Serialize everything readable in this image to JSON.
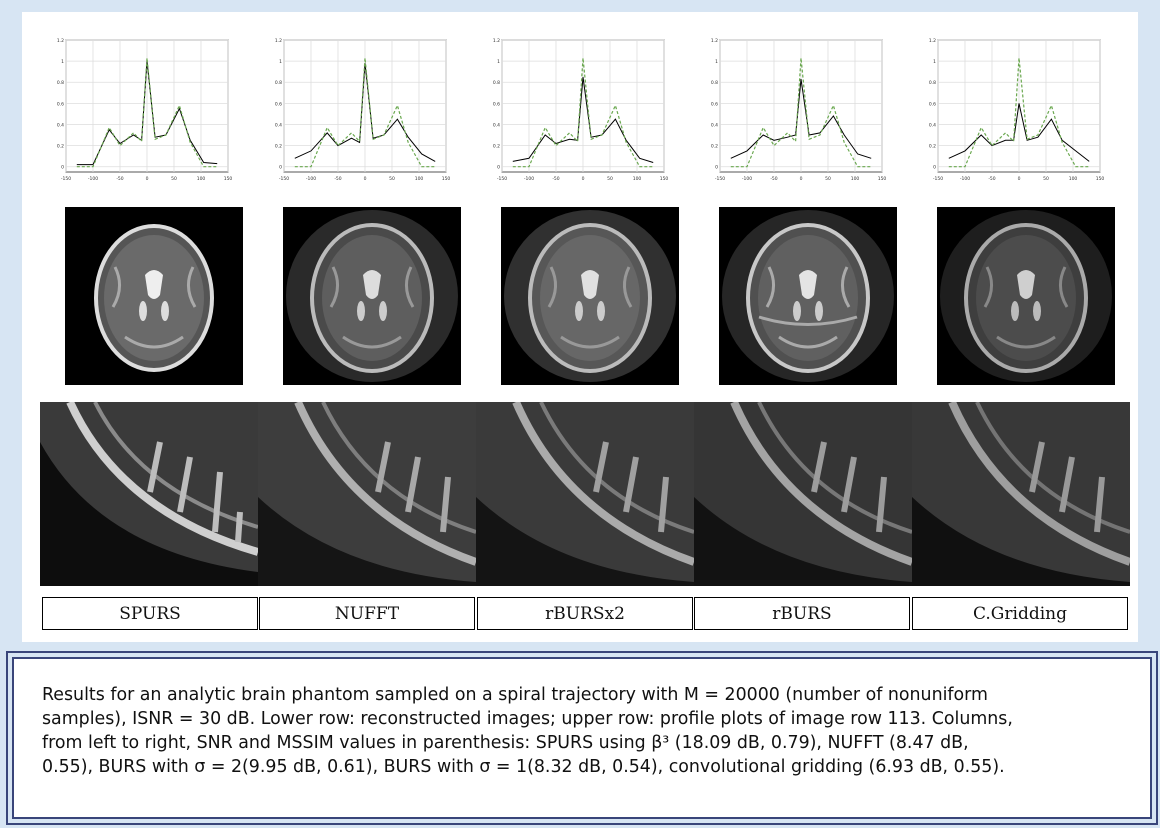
{
  "methods": [
    "SPURS",
    "NUFFT",
    "rBURSx2",
    "rBURS",
    "C.Gridding"
  ],
  "caption": {
    "line1": "Results for an analytic brain phantom sampled on a spiral trajectory with M = 20000 (number of nonuniform",
    "line2": "samples), ISNR = 30 dB. Lower row: reconstructed images; upper row: profile plots of image row 113. Columns,",
    "line3": "from left to right, SNR and MSSIM values in parenthesis: SPURS using β³ (18.09 dB, 0.79), NUFFT (8.47 dB,",
    "line4": "0.55), BURS with σ = 2(9.95 dB, 0.61), BURS with σ = 1(8.32 dB, 0.54), convolutional gridding (6.93 dB, 0.55)."
  },
  "chart_data": [
    {
      "type": "line",
      "series": [
        {
          "values": [
            0.02,
            0.02,
            0.35,
            0.22,
            0.3,
            0.25,
            1.0,
            0.28,
            0.3,
            0.55,
            0.25,
            0.04,
            0.03
          ]
        },
        {
          "values": [
            0.0,
            0.0,
            0.37,
            0.2,
            0.32,
            0.24,
            1.03,
            0.26,
            0.3,
            0.58,
            0.23,
            0.0,
            0.0
          ]
        }
      ],
      "x": [
        -130,
        -100,
        -70,
        -50,
        -25,
        -10,
        0,
        15,
        35,
        60,
        80,
        105,
        130
      ],
      "xlim": [
        -150,
        150
      ],
      "ylim": [
        -0.05,
        1.2
      ],
      "yticks": [
        0,
        0.2,
        0.4,
        0.6,
        0.8,
        1,
        1.2
      ],
      "xticks": [
        -150,
        -100,
        -50,
        0,
        50,
        100,
        150
      ],
      "grid": true
    },
    {
      "type": "line",
      "series": [
        {
          "values": [
            0.08,
            0.15,
            0.32,
            0.2,
            0.27,
            0.23,
            0.98,
            0.27,
            0.3,
            0.45,
            0.28,
            0.12,
            0.05
          ]
        },
        {
          "values": [
            0.0,
            0.0,
            0.37,
            0.2,
            0.32,
            0.24,
            1.03,
            0.26,
            0.3,
            0.58,
            0.23,
            0.0,
            0.0
          ]
        }
      ],
      "x": [
        -130,
        -100,
        -70,
        -50,
        -25,
        -10,
        0,
        15,
        35,
        60,
        80,
        105,
        130
      ],
      "xlim": [
        -150,
        150
      ],
      "ylim": [
        -0.05,
        1.2
      ],
      "yticks": [
        0,
        0.2,
        0.4,
        0.6,
        0.8,
        1,
        1.2
      ],
      "xticks": [
        -150,
        -100,
        -50,
        0,
        50,
        100,
        150
      ],
      "grid": true
    },
    {
      "type": "line",
      "series": [
        {
          "values": [
            0.05,
            0.08,
            0.3,
            0.22,
            0.26,
            0.25,
            0.85,
            0.28,
            0.3,
            0.45,
            0.25,
            0.08,
            0.04
          ]
        },
        {
          "values": [
            0.0,
            0.0,
            0.37,
            0.2,
            0.32,
            0.24,
            1.03,
            0.26,
            0.3,
            0.58,
            0.23,
            0.0,
            0.0
          ]
        }
      ],
      "x": [
        -130,
        -100,
        -70,
        -50,
        -25,
        -10,
        0,
        15,
        35,
        60,
        80,
        105,
        130
      ],
      "xlim": [
        -150,
        150
      ],
      "ylim": [
        -0.05,
        1.2
      ],
      "yticks": [
        0,
        0.2,
        0.4,
        0.6,
        0.8,
        1,
        1.2
      ],
      "xticks": [
        -150,
        -100,
        -50,
        0,
        50,
        100,
        150
      ],
      "grid": true
    },
    {
      "type": "line",
      "series": [
        {
          "values": [
            0.08,
            0.15,
            0.3,
            0.25,
            0.28,
            0.3,
            0.83,
            0.3,
            0.32,
            0.48,
            0.3,
            0.12,
            0.08
          ]
        },
        {
          "values": [
            0.0,
            0.0,
            0.37,
            0.2,
            0.32,
            0.24,
            1.03,
            0.26,
            0.3,
            0.58,
            0.23,
            0.0,
            0.0
          ]
        }
      ],
      "x": [
        -130,
        -100,
        -70,
        -50,
        -25,
        -10,
        0,
        15,
        35,
        60,
        80,
        105,
        130
      ],
      "xlim": [
        -150,
        150
      ],
      "ylim": [
        -0.05,
        1.2
      ],
      "yticks": [
        0,
        0.2,
        0.4,
        0.6,
        0.8,
        1,
        1.2
      ],
      "xticks": [
        -150,
        -100,
        -50,
        0,
        50,
        100,
        150
      ],
      "grid": true
    },
    {
      "type": "line",
      "series": [
        {
          "values": [
            0.08,
            0.15,
            0.3,
            0.2,
            0.25,
            0.25,
            0.6,
            0.25,
            0.28,
            0.45,
            0.25,
            0.15,
            0.05
          ]
        },
        {
          "values": [
            0.0,
            0.0,
            0.37,
            0.2,
            0.32,
            0.24,
            1.03,
            0.26,
            0.3,
            0.58,
            0.23,
            0.0,
            0.0
          ]
        }
      ],
      "x": [
        -130,
        -100,
        -70,
        -50,
        -25,
        -10,
        0,
        15,
        35,
        60,
        80,
        105,
        130
      ],
      "xlim": [
        -150,
        150
      ],
      "ylim": [
        -0.05,
        1.2
      ],
      "yticks": [
        0,
        0.2,
        0.4,
        0.6,
        0.8,
        1,
        1.2
      ],
      "xticks": [
        -150,
        -100,
        -50,
        0,
        50,
        100,
        150
      ],
      "grid": true
    }
  ]
}
